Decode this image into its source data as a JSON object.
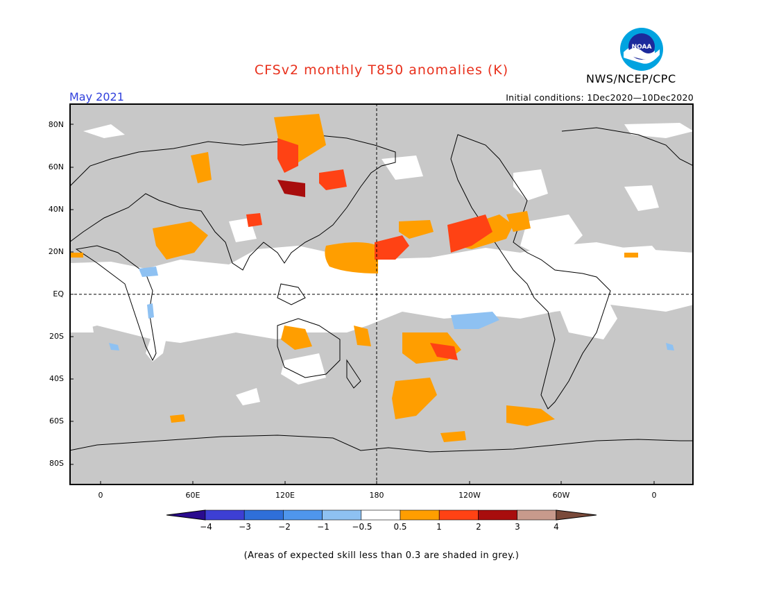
{
  "header": {
    "title": "CFSv2 monthly T850 anomalies (K)",
    "period": "May 2021",
    "initial_conditions": "Initial conditions: 1Dec2020—10Dec2020",
    "agency": "NWS/NCEP/CPC",
    "logo_text": "NOAA"
  },
  "map": {
    "projection": "cylindrical-equidistant",
    "lat_labels": [
      "80N",
      "60N",
      "40N",
      "20N",
      "EQ",
      "20S",
      "40S",
      "60S",
      "80S"
    ],
    "lon_labels": [
      "0",
      "60E",
      "120E",
      "180",
      "120W",
      "60W",
      "0"
    ],
    "no_skill_color": "#c8c8c8"
  },
  "colorbar": {
    "labels": [
      "−4",
      "−3",
      "−2",
      "−1",
      "−0.5",
      "0.5",
      "1",
      "2",
      "3",
      "4"
    ],
    "colors": [
      "#2a0b8e",
      "#3d3fd4",
      "#2f6fd9",
      "#4f96ec",
      "#8ec1f2",
      "#ffffff",
      "#ff9e00",
      "#ff4214",
      "#a80d0d",
      "#c89a8c",
      "#7a4a3a"
    ]
  },
  "footnote": "(Areas of expected skill less than 0.3 are shaded in grey.)"
}
